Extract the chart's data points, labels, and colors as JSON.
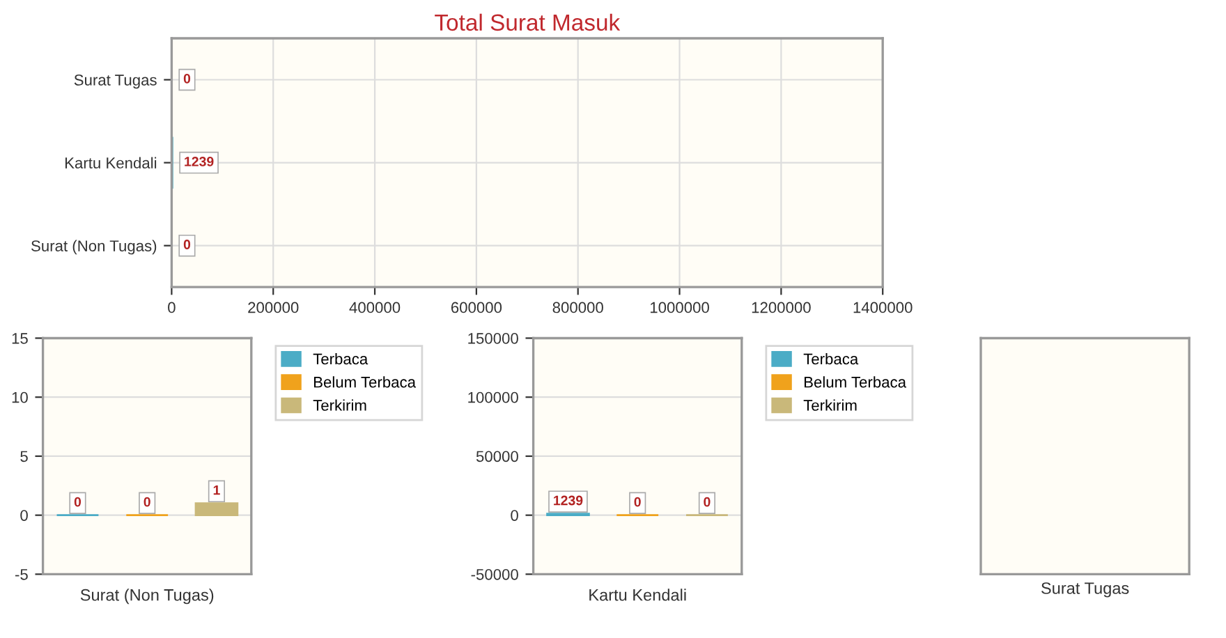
{
  "chart_data": [
    {
      "type": "bar",
      "title": "Total Surat Masuk",
      "orientation": "horizontal",
      "categories": [
        "Surat Tugas",
        "Kartu Kendali",
        "Surat (Non Tugas)"
      ],
      "values": [
        0,
        1239,
        0
      ],
      "color": "#4bacc6",
      "xlim": [
        0,
        1400000
      ],
      "xticks": [
        0,
        200000,
        400000,
        600000,
        800000,
        1000000,
        1200000,
        1400000
      ],
      "grid": true,
      "data_labels": true
    },
    {
      "type": "bar",
      "xlabel": "Surat (Non Tugas)",
      "categories": [
        null,
        null,
        null
      ],
      "series": [
        {
          "name": "Terbaca",
          "color": "#4bacc6",
          "values": [
            0,
            null,
            null
          ]
        },
        {
          "name": "Belum Terbaca",
          "color": "#f0a21c",
          "values": [
            null,
            0,
            null
          ]
        },
        {
          "name": "Terkirim",
          "color": "#c9b87a",
          "values": [
            null,
            null,
            1
          ]
        }
      ],
      "ylim": [
        -5,
        15
      ],
      "yticks": [
        -5,
        0,
        5,
        10,
        15
      ],
      "grid": "y",
      "legend": "right",
      "data_labels": true
    },
    {
      "type": "bar",
      "xlabel": "Kartu Kendali",
      "categories": [
        null,
        null,
        null
      ],
      "series": [
        {
          "name": "Terbaca",
          "color": "#4bacc6",
          "values": [
            1239,
            null,
            null
          ]
        },
        {
          "name": "Belum Terbaca",
          "color": "#f0a21c",
          "values": [
            null,
            0,
            null
          ]
        },
        {
          "name": "Terkirim",
          "color": "#c9b87a",
          "values": [
            null,
            null,
            0
          ]
        }
      ],
      "ylim": [
        -50000,
        150000
      ],
      "yticks": [
        -50000,
        0,
        50000,
        100000,
        150000
      ],
      "grid": "y",
      "legend": "right",
      "data_labels": true
    },
    {
      "type": "other",
      "xlabel": "Surat Tugas"
    }
  ]
}
